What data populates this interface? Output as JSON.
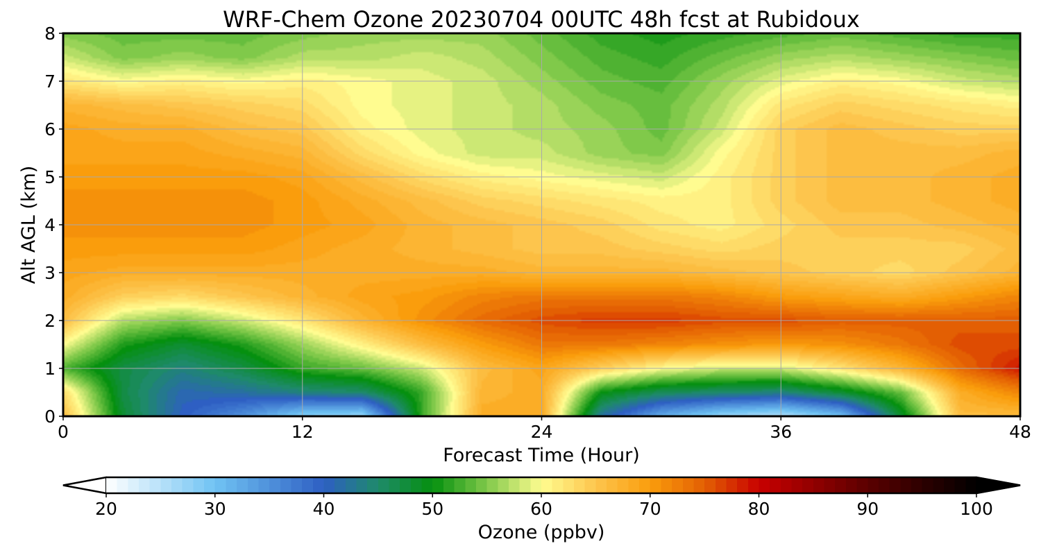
{
  "chart_data": {
    "type": "heatmap",
    "title": "WRF-Chem Ozone  20230704 00UTC 48h fcst at Rubidoux",
    "xlabel": "Forecast Time (Hour)",
    "ylabel": "Alt AGL (km)",
    "xlim": [
      0,
      48
    ],
    "ylim": [
      0,
      8
    ],
    "x_ticks": [
      "0",
      "12",
      "24",
      "36",
      "48"
    ],
    "y_ticks": [
      "0",
      "1",
      "2",
      "3",
      "4",
      "5",
      "6",
      "7",
      "8"
    ],
    "grid": true,
    "x": [
      0,
      3,
      6,
      9,
      12,
      15,
      18,
      21,
      24,
      27,
      30,
      33,
      36,
      39,
      42,
      45,
      48
    ],
    "y": [
      0,
      0.5,
      1,
      1.5,
      2,
      2.5,
      3,
      3.5,
      4,
      4.5,
      5,
      5.5,
      6,
      6.5,
      7,
      7.5,
      8
    ],
    "z": [
      [
        66,
        48,
        40,
        35,
        28,
        27,
        52,
        68,
        68,
        42,
        32,
        27,
        25,
        30,
        48,
        66,
        66
      ],
      [
        63,
        47,
        41,
        42,
        44,
        45,
        52,
        67,
        68,
        50,
        46,
        45,
        44,
        48,
        54,
        68,
        72
      ],
      [
        53,
        47,
        44,
        47,
        52,
        54,
        58,
        66,
        69,
        64,
        60,
        58,
        58,
        62,
        67,
        74,
        79
      ],
      [
        60,
        51,
        48,
        51,
        56,
        61,
        66,
        70,
        73,
        73,
        72,
        71,
        70,
        71,
        73,
        76,
        76
      ],
      [
        66,
        57,
        55,
        58,
        62,
        67,
        71,
        74,
        76,
        77,
        77,
        76,
        76,
        75,
        75,
        75,
        75
      ],
      [
        68,
        64,
        63,
        65,
        67,
        69,
        70,
        72,
        73,
        73,
        73,
        72,
        70,
        69,
        68,
        70,
        72
      ],
      [
        69,
        68,
        68,
        68,
        68,
        68,
        68,
        68,
        67,
        67,
        67,
        66,
        65,
        64,
        63,
        65,
        67
      ],
      [
        70,
        70,
        70,
        70,
        69,
        68,
        67,
        66,
        65,
        65,
        64,
        63,
        64,
        64,
        64,
        64,
        66
      ],
      [
        71,
        71,
        71,
        71,
        70,
        69,
        67,
        66,
        65,
        64,
        62,
        61,
        63,
        65,
        65,
        66,
        67
      ],
      [
        71,
        71,
        71,
        71,
        70,
        68,
        66,
        64,
        63,
        62,
        61,
        61,
        64,
        66,
        66,
        67,
        68
      ],
      [
        70,
        70,
        70,
        70,
        69,
        66,
        63,
        61,
        60,
        59,
        58,
        61,
        64,
        66,
        66,
        67,
        68
      ],
      [
        69,
        69,
        69,
        68,
        67,
        63,
        60,
        58,
        58,
        56,
        55,
        60,
        64,
        66,
        66,
        66,
        67
      ],
      [
        69,
        68,
        68,
        66,
        65,
        61,
        59,
        58,
        57,
        56,
        54,
        58,
        64,
        66,
        65,
        64,
        64
      ],
      [
        67,
        66,
        65,
        64,
        63,
        60,
        59,
        58,
        57,
        55,
        54,
        57,
        62,
        64,
        63,
        62,
        61
      ],
      [
        62,
        60,
        61,
        60,
        61,
        60,
        59,
        58,
        56,
        54,
        53,
        56,
        59,
        61,
        60,
        58,
        57
      ],
      [
        58,
        55,
        56,
        55,
        57,
        57,
        58,
        57,
        55,
        53,
        52,
        54,
        56,
        57,
        56,
        55,
        54
      ],
      [
        55,
        54,
        54,
        54,
        55,
        56,
        56,
        56,
        54,
        52,
        51,
        52,
        53,
        54,
        53,
        52,
        52
      ]
    ],
    "colorbar": {
      "label": "Ozone  (ppbv)",
      "min": 20,
      "max": 100,
      "ticks": [
        "20",
        "30",
        "40",
        "50",
        "60",
        "70",
        "80",
        "90",
        "100"
      ],
      "extend": "both",
      "stops": [
        {
          "v": 20,
          "c": "#ffffff"
        },
        {
          "v": 30,
          "c": "#70c3f3"
        },
        {
          "v": 40,
          "c": "#2e5fc3"
        },
        {
          "v": 45,
          "c": "#1e8a6a"
        },
        {
          "v": 50,
          "c": "#05900f"
        },
        {
          "v": 55,
          "c": "#80c94a"
        },
        {
          "v": 60,
          "c": "#fffc90"
        },
        {
          "v": 65,
          "c": "#fdc54d"
        },
        {
          "v": 70,
          "c": "#fa9d0c"
        },
        {
          "v": 75,
          "c": "#e35f03"
        },
        {
          "v": 80,
          "c": "#c80000"
        },
        {
          "v": 90,
          "c": "#5a0000"
        },
        {
          "v": 100,
          "c": "#000000"
        }
      ]
    }
  }
}
